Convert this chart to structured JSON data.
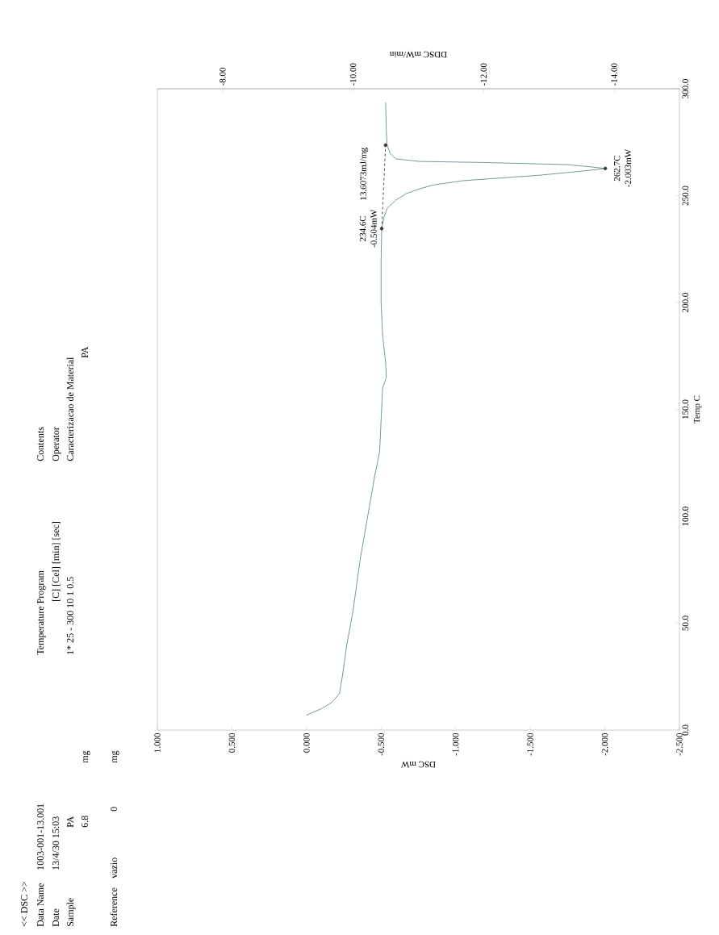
{
  "chart_data": {
    "type": "line",
    "xlabel": "DSC mW",
    "ylabel": "Temp C",
    "x2label": "DDSC mW/min",
    "xlim": [
      1.0,
      -2.5
    ],
    "ylim": [
      0,
      300
    ],
    "x2lim": [
      -7,
      -15
    ],
    "xticks": [
      {
        "value": 1.0,
        "label": "1.000"
      },
      {
        "value": 0.5,
        "label": "0.500"
      },
      {
        "value": 0.0,
        "label": "0.000"
      },
      {
        "value": -0.5,
        "label": "-0.500"
      },
      {
        "value": -1.0,
        "label": "-1.000"
      },
      {
        "value": -1.5,
        "label": "-1.500"
      },
      {
        "value": -2.0,
        "label": "-2.000"
      },
      {
        "value": -2.5,
        "label": "-2.500"
      }
    ],
    "yticks": [
      {
        "value": 0,
        "label": "0.0"
      },
      {
        "value": 50,
        "label": "50.0"
      },
      {
        "value": 100,
        "label": "100.0"
      },
      {
        "value": 150,
        "label": "150.0"
      },
      {
        "value": 200,
        "label": "200.0"
      },
      {
        "value": 250,
        "label": "250.0"
      },
      {
        "value": 300,
        "label": "300.0"
      }
    ],
    "x2ticks": [
      {
        "value": -8,
        "label": "-8.00"
      },
      {
        "value": -10,
        "label": "-10.00"
      },
      {
        "value": -12,
        "label": "-12.00"
      },
      {
        "value": -14,
        "label": "-14.00"
      }
    ],
    "series": [
      {
        "type": "line",
        "color": "#5e8e90",
        "x": [
          0.0,
          -0.1,
          -0.17,
          -0.22,
          -0.24,
          -0.27,
          -0.31,
          -0.36,
          -0.41,
          -0.46,
          -0.49,
          -0.5,
          -0.51,
          -0.535,
          -0.53,
          -0.51,
          -0.5,
          -0.5,
          -0.504,
          -0.52,
          -0.54,
          -0.6,
          -0.67,
          -0.75,
          -0.85,
          -1.05,
          -1.57,
          -1.85,
          -2.003,
          -1.9,
          -1.75,
          -1.2,
          -0.76,
          -0.6,
          -0.56,
          -0.54,
          -0.535,
          -0.53
        ],
        "values": [
          7,
          10,
          13,
          17,
          25,
          40,
          55,
          80,
          100,
          120,
          130,
          145,
          160,
          165,
          172,
          185,
          200,
          220,
          234.6,
          240,
          244,
          248,
          251,
          253,
          255,
          257,
          259.6,
          261.5,
          262.7,
          263.5,
          264.5,
          265.5,
          266,
          267.2,
          269.8,
          273.6,
          280,
          293.6
        ]
      },
      {
        "type": "line",
        "color": "#333333",
        "line_style": "dashed",
        "marker": "circle",
        "x": [
          -0.504,
          -0.53
        ],
        "values": [
          234.6,
          273.6
        ]
      },
      {
        "type": "scatter",
        "color": "#333333",
        "marker": "circle",
        "x": [
          -2.003
        ],
        "values": [
          262.7
        ]
      }
    ],
    "annotations": [
      "<< DSC >>",
      "Data Name",
      "1003-001-13.001",
      "Date",
      "13/4/30 15:03",
      "Sample",
      "PA",
      "6.8",
      "mg",
      "Reference",
      "vazio",
      "0",
      "mg",
      "Temperature Program",
      "[C]  [Cel]  [min]  [sec]",
      "1*  25 - 300  10  1  0.5",
      "Contents",
      "Operator",
      "Caracterizacao de Material",
      "PA",
      "234.6C",
      "-0.504mW",
      "13.6073mJ/mg",
      "262.7C",
      "-2.003mW"
    ]
  }
}
